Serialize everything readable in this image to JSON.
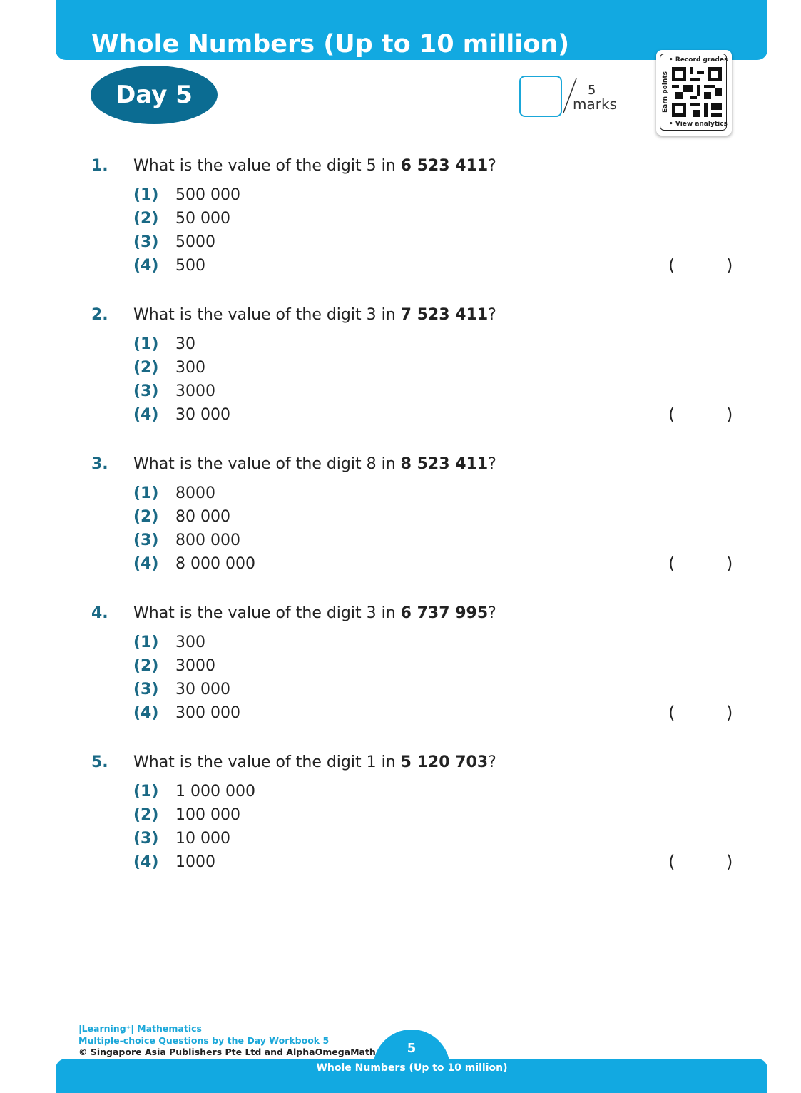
{
  "header": {
    "title": "Whole Numbers (Up to 10 million)",
    "day": "Day 5",
    "total_marks": "5",
    "marks_label": "marks"
  },
  "qr_card": {
    "top": "• Record grades",
    "bottom": "• View analytics",
    "side": "Earn points"
  },
  "colors": {
    "header": "#12a9e1",
    "day_badge": "#0b6c92",
    "numbering": "#1a6985"
  },
  "questions": [
    {
      "num": "1.",
      "pre": "What is the value of the digit 5 in ",
      "bold": "6 523 411",
      "post": "?",
      "options": [
        {
          "label": "(1)",
          "value": "500 000"
        },
        {
          "label": "(2)",
          "value": "50 000"
        },
        {
          "label": "(3)",
          "value": "5000"
        },
        {
          "label": "(4)",
          "value": "500"
        }
      ]
    },
    {
      "num": "2.",
      "pre": "What is the value of the digit 3 in ",
      "bold": "7 523 411",
      "post": "?",
      "options": [
        {
          "label": "(1)",
          "value": "30"
        },
        {
          "label": "(2)",
          "value": "300"
        },
        {
          "label": "(3)",
          "value": "3000"
        },
        {
          "label": "(4)",
          "value": "30 000"
        }
      ]
    },
    {
      "num": "3.",
      "pre": "What is the value of the digit 8 in ",
      "bold": "8 523 411",
      "post": "?",
      "options": [
        {
          "label": "(1)",
          "value": "8000"
        },
        {
          "label": "(2)",
          "value": "80 000"
        },
        {
          "label": "(3)",
          "value": "800 000"
        },
        {
          "label": "(4)",
          "value": "8 000 000"
        }
      ]
    },
    {
      "num": "4.",
      "pre": "What is the value of the digit 3 in ",
      "bold": "6 737 995",
      "post": "?",
      "options": [
        {
          "label": "(1)",
          "value": "300"
        },
        {
          "label": "(2)",
          "value": "3000"
        },
        {
          "label": "(3)",
          "value": "30 000"
        },
        {
          "label": "(4)",
          "value": "300 000"
        }
      ]
    },
    {
      "num": "5.",
      "pre": "What is the value of the digit 1 in ",
      "bold": "5 120 703",
      "post": "?",
      "options": [
        {
          "label": "(1)",
          "value": "1 000 000"
        },
        {
          "label": "(2)",
          "value": "100 000"
        },
        {
          "label": "(3)",
          "value": "10 000"
        },
        {
          "label": "(4)",
          "value": "1000"
        }
      ]
    }
  ],
  "answer_parens": {
    "open": "(",
    "close": ")"
  },
  "footer": {
    "line1": "|Learning⁺| Mathematics",
    "line2": "Multiple-choice Questions by the Day Workbook 5",
    "line3": "© Singapore Asia Publishers Pte Ltd and AlphaOmegaMath",
    "page_number": "5",
    "chapter": "Whole Numbers (Up to 10 million)"
  }
}
